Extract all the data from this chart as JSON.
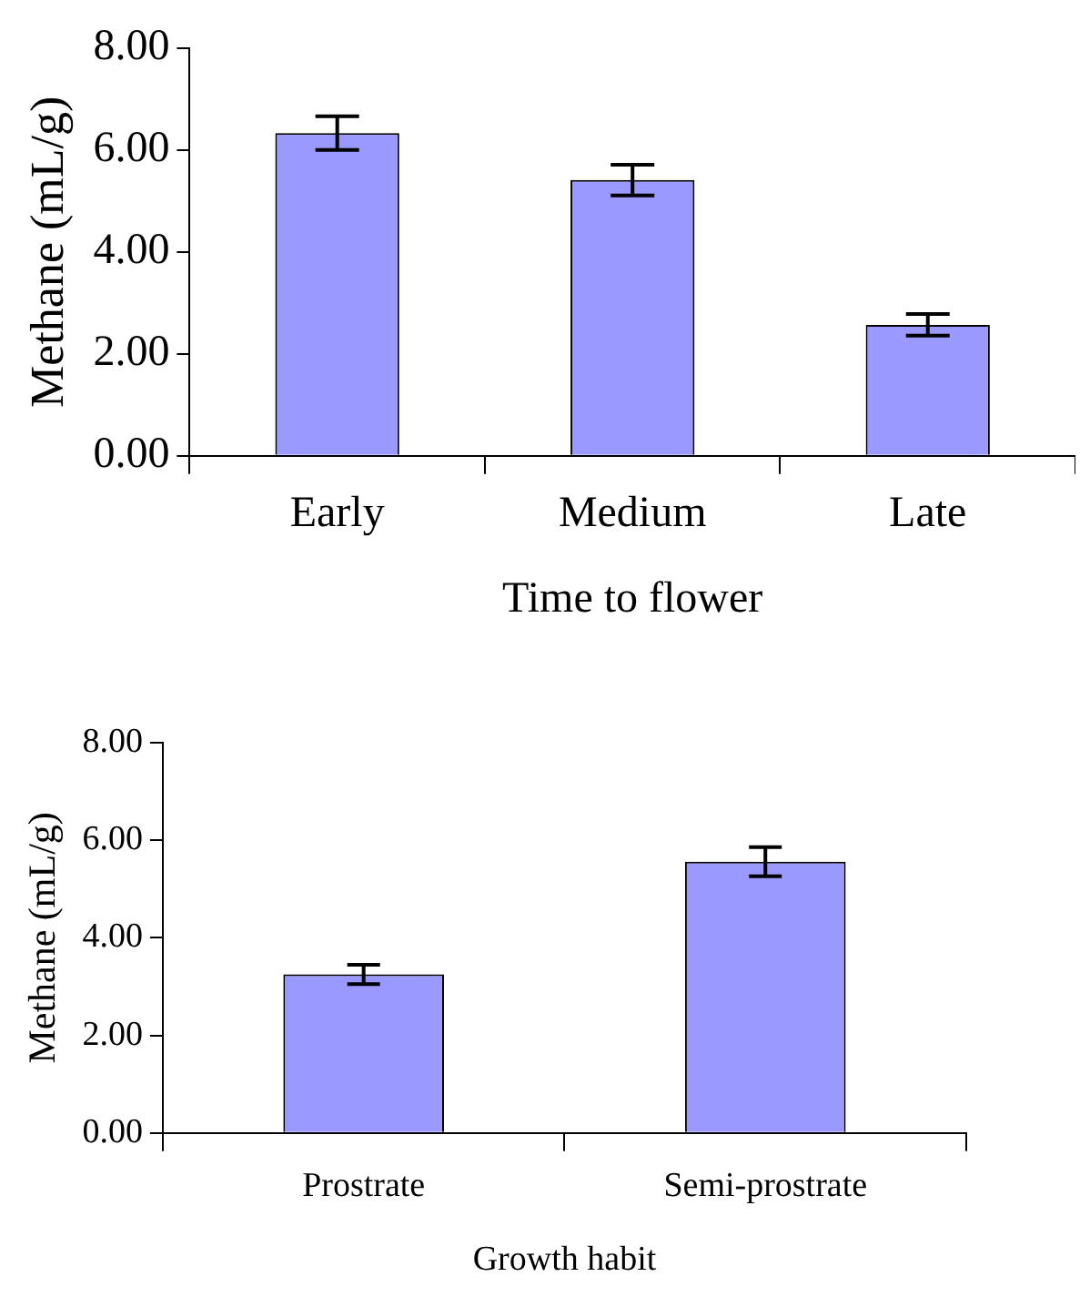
{
  "chart_data": [
    {
      "type": "bar",
      "xlabel": "Time to flower",
      "ylabel": "Methane (mL/g)",
      "categories": [
        "Early",
        "Medium",
        "Late"
      ],
      "values": [
        6.33,
        5.41,
        2.57
      ],
      "errors": [
        0.33,
        0.3,
        0.21
      ],
      "color": "#9999ff",
      "ylim": [
        0,
        8
      ],
      "yticks": [
        {
          "value": 0,
          "label": "0.00"
        },
        {
          "value": 2,
          "label": "2.00"
        },
        {
          "value": 4,
          "label": "4.00"
        },
        {
          "value": 6,
          "label": "6.00"
        },
        {
          "value": 8,
          "label": "8.00"
        }
      ],
      "grid": false,
      "legend": false
    },
    {
      "type": "bar",
      "xlabel": "Growth habit",
      "ylabel": "Methane (mL/g)",
      "categories": [
        "Prostrate",
        "Semi-prostrate"
      ],
      "values": [
        3.25,
        5.56
      ],
      "errors": [
        0.2,
        0.3
      ],
      "color": "#9999ff",
      "ylim": [
        0,
        8
      ],
      "yticks": [
        {
          "value": 0,
          "label": "0.00"
        },
        {
          "value": 2,
          "label": "2.00"
        },
        {
          "value": 4,
          "label": "4.00"
        },
        {
          "value": 6,
          "label": "6.00"
        },
        {
          "value": 8,
          "label": "8.00"
        }
      ],
      "grid": false,
      "legend": false
    }
  ]
}
